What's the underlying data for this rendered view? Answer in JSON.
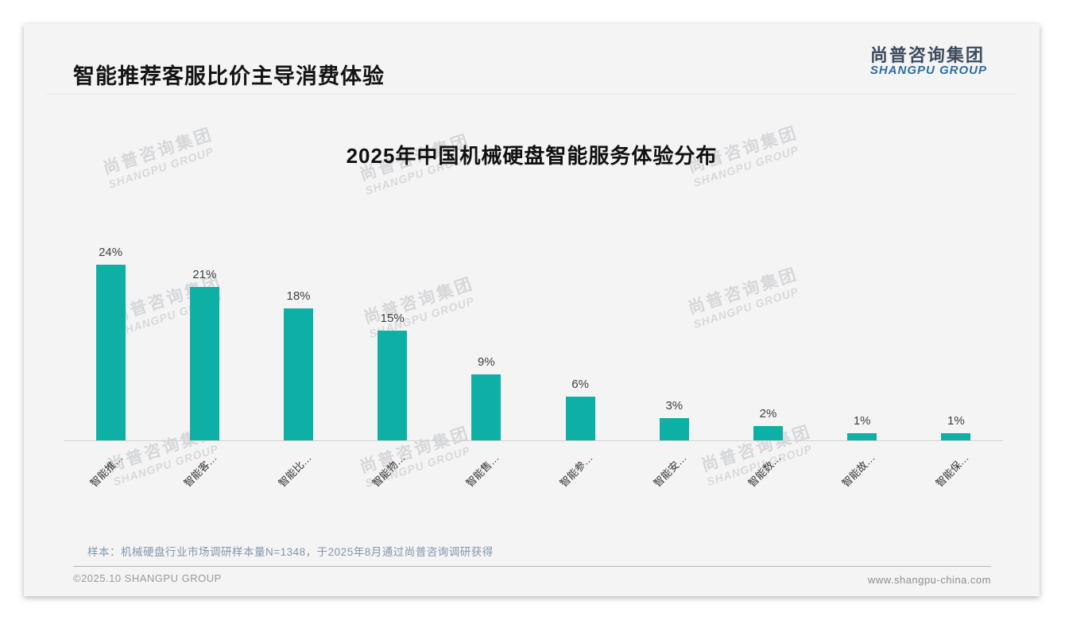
{
  "page": {
    "header": {
      "title": "智能推荐客服比价主导消费体验"
    },
    "logo": {
      "cn": "尚普咨询集团",
      "en": "SHANGPU GROUP"
    },
    "watermark": {
      "line1": "尚普咨询集团",
      "line2": "SHANGPU GROUP"
    },
    "footnote": "样本：机械硬盘行业市场调研样本量N=1348，于2025年8月通过尚普咨询调研获得",
    "footer": {
      "copyright": "©2025.10 SHANGPU GROUP",
      "website": "www.shangpu-china.com"
    }
  },
  "chart_data": {
    "type": "bar",
    "title": "2025年中国机械硬盘智能服务体验分布",
    "categories": [
      "智能推…",
      "智能客…",
      "智能比…",
      "智能物…",
      "智能售…",
      "智能参…",
      "智能安…",
      "智能数…",
      "智能故…",
      "智能保…"
    ],
    "values": [
      24,
      21,
      18,
      15,
      9,
      6,
      3,
      2,
      1,
      1
    ],
    "unit": "%",
    "value_labels": [
      "24%",
      "21%",
      "18%",
      "15%",
      "9%",
      "6%",
      "3%",
      "2%",
      "1%",
      "1%"
    ],
    "bar_color": "#0eb0a6",
    "ylim": [
      0,
      26
    ],
    "grid": false,
    "legend": null,
    "xlabel": "",
    "ylabel": ""
  }
}
